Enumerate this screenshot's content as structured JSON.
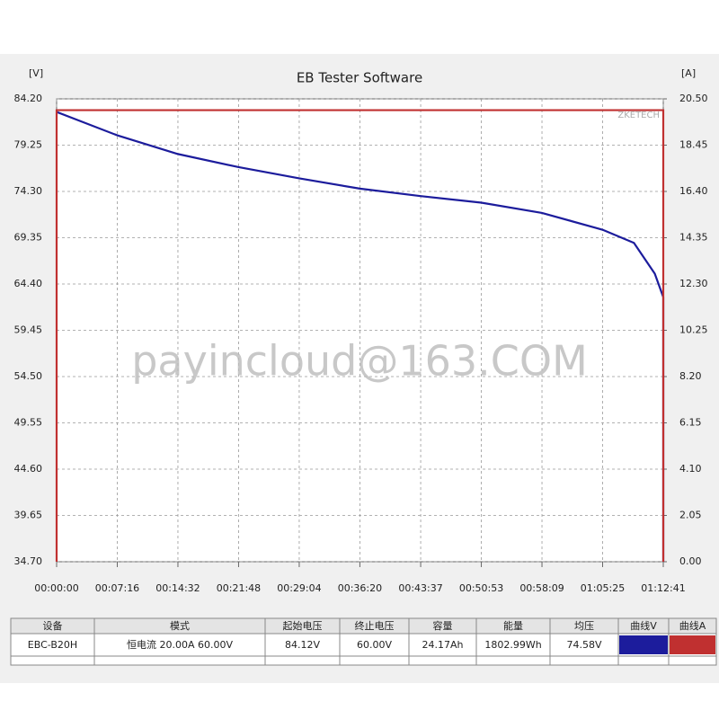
{
  "chart_data": {
    "type": "line",
    "title": "EB Tester Software",
    "y_label": "[V]",
    "y2_label": "[A]",
    "brand": "ZKETECH",
    "watermark": "payincloud@163.COM",
    "xlim": [
      0,
      4361
    ],
    "xticks": [
      {
        "value": 0,
        "label": "00:00:00"
      },
      {
        "value": 436,
        "label": "00:07:16"
      },
      {
        "value": 872,
        "label": "00:14:32"
      },
      {
        "value": 1308,
        "label": "00:21:48"
      },
      {
        "value": 1744,
        "label": "00:29:04"
      },
      {
        "value": 2180,
        "label": "00:36:20"
      },
      {
        "value": 2617,
        "label": "00:43:37"
      },
      {
        "value": 3053,
        "label": "00:50:53"
      },
      {
        "value": 3489,
        "label": "00:58:09"
      },
      {
        "value": 3925,
        "label": "01:05:25"
      },
      {
        "value": 4361,
        "label": "01:12:41"
      }
    ],
    "ylim": [
      34.7,
      84.2
    ],
    "yticks": [
      {
        "value": 34.7,
        "label": "34.70"
      },
      {
        "value": 39.65,
        "label": "39.65"
      },
      {
        "value": 44.6,
        "label": "44.60"
      },
      {
        "value": 49.55,
        "label": "49.55"
      },
      {
        "value": 54.5,
        "label": "54.50"
      },
      {
        "value": 59.45,
        "label": "59.45"
      },
      {
        "value": 64.4,
        "label": "64.40"
      },
      {
        "value": 69.35,
        "label": "69.35"
      },
      {
        "value": 74.3,
        "label": "74.30"
      },
      {
        "value": 79.25,
        "label": "79.25"
      },
      {
        "value": 84.2,
        "label": "84.20"
      }
    ],
    "y2lim": [
      0,
      20.5
    ],
    "y2ticks": [
      {
        "value": 0,
        "label": "0.00"
      },
      {
        "value": 2.05,
        "label": "2.05"
      },
      {
        "value": 4.1,
        "label": "4.10"
      },
      {
        "value": 6.15,
        "label": "6.15"
      },
      {
        "value": 8.2,
        "label": "8.20"
      },
      {
        "value": 10.25,
        "label": "10.25"
      },
      {
        "value": 12.3,
        "label": "12.30"
      },
      {
        "value": 14.35,
        "label": "14.35"
      },
      {
        "value": 16.4,
        "label": "16.40"
      },
      {
        "value": 18.45,
        "label": "18.45"
      },
      {
        "value": 20.5,
        "label": "20.50"
      }
    ],
    "grid": true,
    "series": [
      {
        "color": "#1c1c9c",
        "x": [
          0,
          436,
          872,
          1308,
          1744,
          2180,
          2617,
          3053,
          3489,
          3925,
          4150,
          4300,
          4361,
          4361
        ],
        "values": [
          82.8,
          80.3,
          78.3,
          76.9,
          75.7,
          74.6,
          73.8,
          73.1,
          72.0,
          70.2,
          68.8,
          65.5,
          63.0,
          34.7
        ]
      },
      {
        "color": "#c03030",
        "axis": "y2",
        "x": [
          0,
          0,
          4361,
          4361
        ],
        "values": [
          0,
          20.0,
          20.0,
          0
        ]
      }
    ]
  },
  "table": {
    "header": [
      "设备",
      "模式",
      "起始电压",
      "终止电压",
      "容量",
      "能量",
      "均压",
      "曲线V",
      "曲线A"
    ],
    "row": [
      "EBC-B20H",
      "恒电流  20.00A  60.00V",
      "84.12V",
      "60.00V",
      "24.17Ah",
      "1802.99Wh",
      "74.58V"
    ]
  }
}
